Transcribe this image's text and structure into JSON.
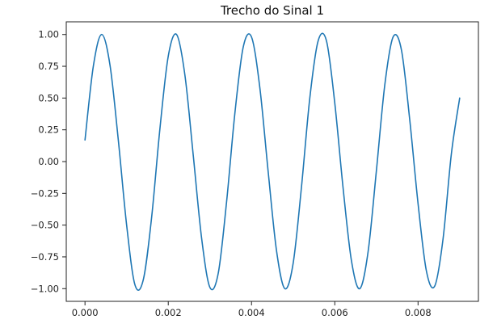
{
  "chart_data": {
    "type": "line",
    "title": "Trecho do Sinal 1",
    "xlabel": "",
    "ylabel": "",
    "xlim": [
      -0.00045,
      0.00945
    ],
    "ylim": [
      -1.1,
      1.1
    ],
    "grid": false,
    "legend": "none",
    "x_ticks": [
      0.0,
      0.002,
      0.004,
      0.006,
      0.008
    ],
    "x_tick_labels": [
      "0.000",
      "0.002",
      "0.004",
      "0.006",
      "0.008"
    ],
    "y_ticks": [
      1.0,
      0.75,
      0.5,
      0.25,
      0.0,
      -0.25,
      -0.5,
      -0.75,
      -1.0
    ],
    "y_tick_labels": [
      "1.00",
      "0.75",
      "0.50",
      "0.25",
      "0.00",
      "−0.25",
      "−0.50",
      "−0.75",
      "−1.00"
    ],
    "series": [
      {
        "color": "#1f77b4",
        "x": [
          0.0,
          0.0002,
          0.0004,
          0.0006,
          0.0008,
          0.001,
          0.0012,
          0.0014,
          0.0016,
          0.0018,
          0.002,
          0.0022,
          0.0024,
          0.0026,
          0.0028,
          0.003,
          0.0032,
          0.0034,
          0.0036,
          0.0038,
          0.004,
          0.0042,
          0.0044,
          0.0046,
          0.0048,
          0.005,
          0.0052,
          0.0054,
          0.0056,
          0.0058,
          0.006,
          0.0062,
          0.0064,
          0.0066,
          0.0068,
          0.007,
          0.0072,
          0.0074,
          0.0076,
          0.0078,
          0.008,
          0.0082,
          0.0084,
          0.0086,
          0.0088,
          0.009
        ],
        "y": [
          0.17,
          0.75,
          1.0,
          0.76,
          0.17,
          -0.5,
          -0.97,
          -0.93,
          -0.44,
          0.26,
          0.83,
          1.0,
          0.68,
          0.05,
          -0.6,
          -0.99,
          -0.88,
          -0.32,
          0.38,
          0.9,
          0.98,
          0.58,
          -0.08,
          -0.7,
          -1.0,
          -0.8,
          -0.2,
          0.5,
          0.95,
          0.95,
          0.46,
          -0.21,
          -0.78,
          -1.0,
          -0.71,
          -0.07,
          0.6,
          0.98,
          0.88,
          0.33,
          -0.33,
          -0.86,
          -0.98,
          -0.61,
          0.06,
          0.5
        ]
      }
    ]
  }
}
